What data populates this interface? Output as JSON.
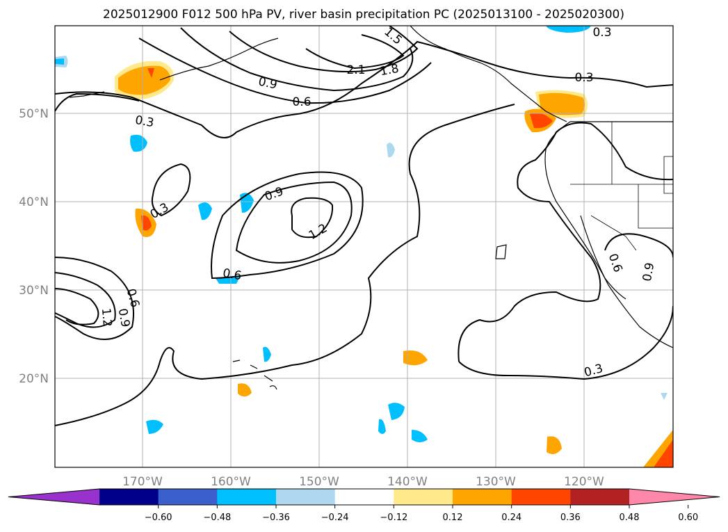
{
  "title": "2025012900 F012 500 hPa PV, river basin precipitation PC (2025013100 - 2025020300)",
  "lon_ticks": [
    "170°W",
    "160°W",
    "150°W",
    "140°W",
    "130°W",
    "120°W"
  ],
  "lat_ticks": [
    "50°N",
    "40°N",
    "30°N",
    "20°N"
  ],
  "contour_labels": [
    "0.3",
    "0.3",
    "0.3",
    "0.3",
    "0.3",
    "0.6",
    "0.6",
    "0.6",
    "0.6",
    "0.9",
    "0.9",
    "0.9",
    "0.9",
    "1.2",
    "1.2",
    "1.5",
    "1.8",
    "2.1"
  ],
  "colorbar": {
    "ticks": [
      "−0.60",
      "−0.48",
      "−0.36",
      "−0.24",
      "−0.12",
      "0.12",
      "0.24",
      "0.36",
      "0.48",
      "0.60"
    ],
    "colors": [
      "#9932cc",
      "#00008b",
      "#3a5fcd",
      "#00bfff",
      "#add8f0",
      "#ffffff",
      "#ffe98a",
      "#ffa500",
      "#ff4500",
      "#b22222",
      "#ff88aa"
    ]
  }
}
